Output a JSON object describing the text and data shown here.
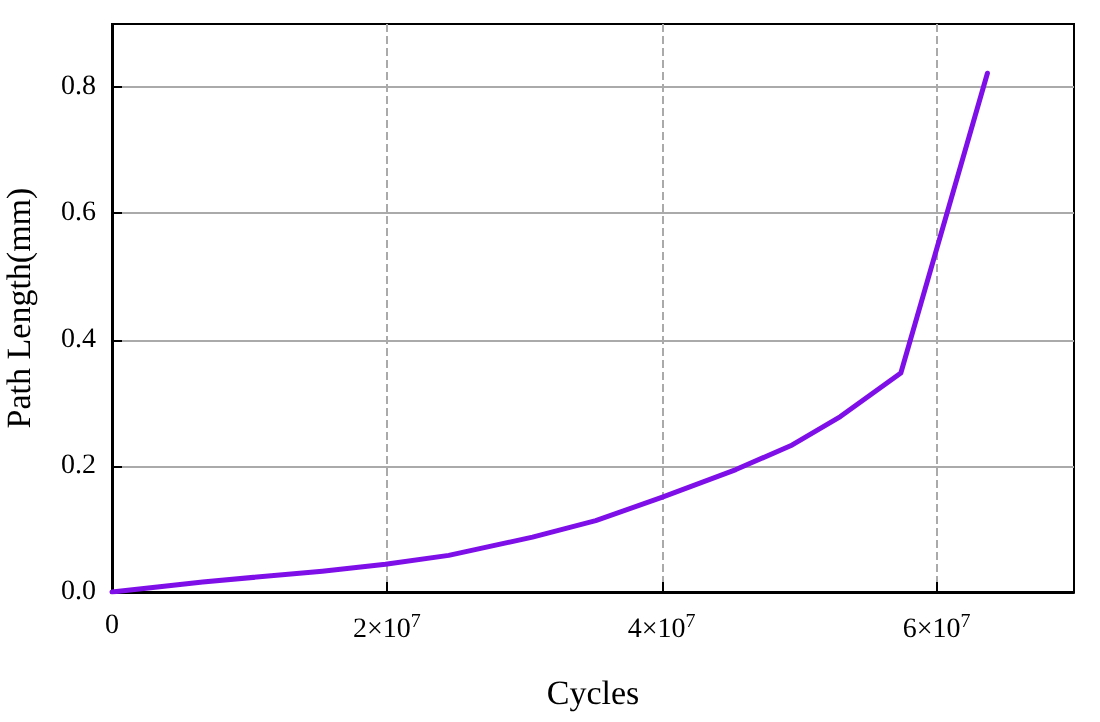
{
  "chart_data": {
    "type": "line",
    "xlabel": "Cycles",
    "ylabel": "Path Length(mm)",
    "x": [
      0,
      6600000,
      15300000,
      19900000,
      24500000,
      30600000,
      35200000,
      40000000,
      45400000,
      49500000,
      53000000,
      57400000,
      63700000
    ],
    "series": [
      {
        "color": "#7f0fe8",
        "values": [
          0,
          0.016,
          0.033,
          0.044,
          0.058,
          0.087,
          0.113,
          0.15,
          0.194,
          0.233,
          0.278,
          0.347,
          0.822
        ]
      }
    ],
    "xlim": [
      0,
      70000000
    ],
    "xticks": [
      0,
      {
        "value": 20000000,
        "label": "2×10$^{7}$"
      },
      {
        "value": 40000000,
        "label": "4×10$^{7}$"
      },
      {
        "value": 60000000,
        "label": "6×10$^{7}$"
      }
    ],
    "ylim": [
      0,
      0.9
    ],
    "yticks": [
      "0.0",
      0.2,
      0.4,
      0.6,
      0.8
    ],
    "grid": true,
    "marker": "none",
    "line_style": "solid"
  }
}
